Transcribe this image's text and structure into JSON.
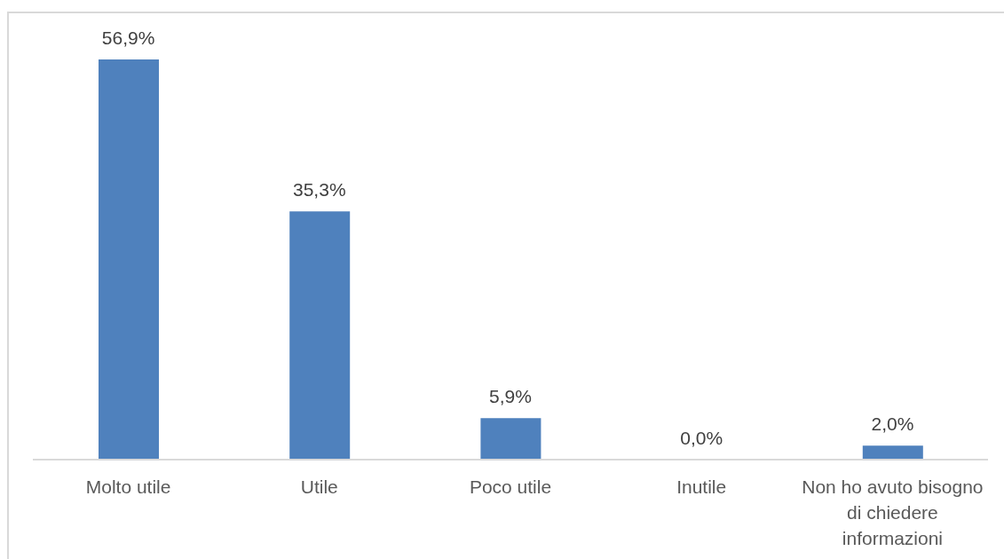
{
  "chart_data": {
    "type": "bar",
    "categories": [
      "Molto utile",
      "Utile",
      "Poco utile",
      "Inutile",
      "Non ho avuto bisogno di chiedere informazioni"
    ],
    "values": [
      56.9,
      35.3,
      5.9,
      0.0,
      2.0
    ],
    "color": "#4f81bd",
    "value_labels": [
      "56,9%",
      "35,3%",
      "5,9%",
      "0,0%",
      "2,0%"
    ],
    "tick_labels": "x"
  }
}
